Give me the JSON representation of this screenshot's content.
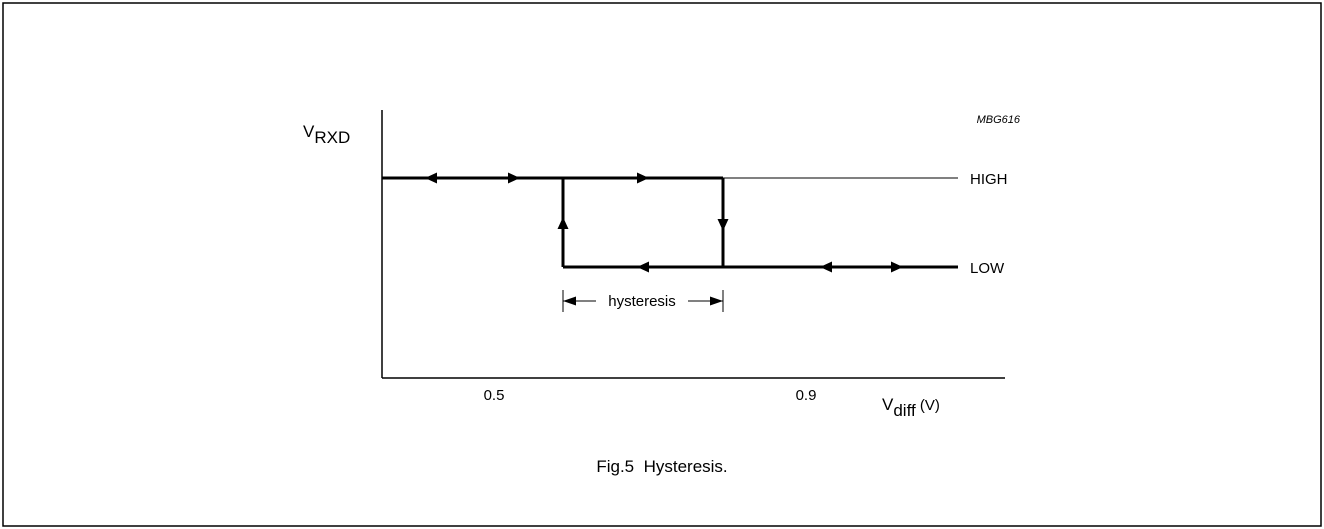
{
  "figure": {
    "code": "MBG616",
    "caption": "Fig.5  Hysteresis."
  },
  "axes": {
    "y_label_main": "V",
    "y_label_sub": "RXD",
    "x_label_main": "V",
    "x_label_sub": "diff",
    "x_label_unit": " (V)",
    "x_tick_1": "0.5",
    "x_tick_2": "0.9"
  },
  "levels": {
    "high": "HIGH",
    "low": "LOW"
  },
  "annotation": {
    "hysteresis": "hysteresis"
  },
  "colors": {
    "line": "#000000",
    "background": "#ffffff"
  }
}
